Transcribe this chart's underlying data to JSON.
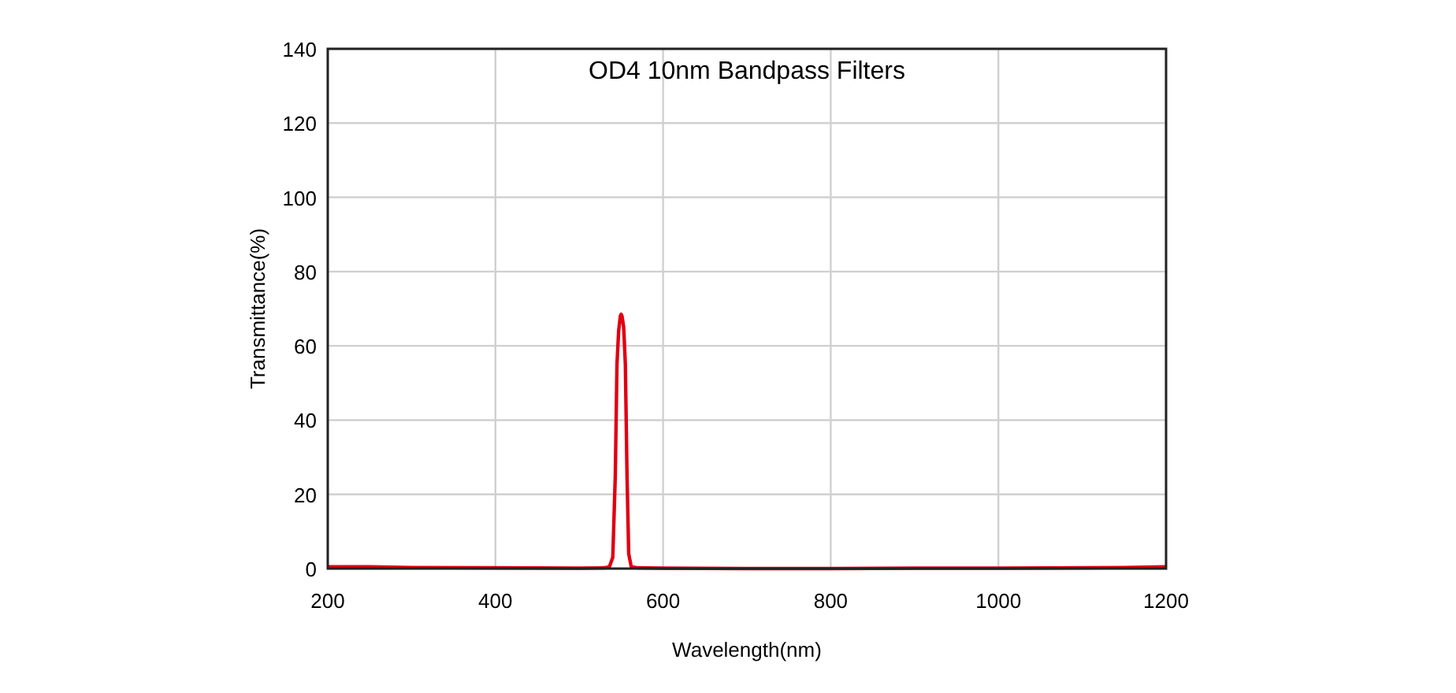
{
  "chart_data": {
    "type": "line",
    "title": "OD4 10nm Bandpass Filters",
    "xlabel": "Wavelength(nm)",
    "ylabel": "Transmittance(%)",
    "series": [
      {
        "color": "#e00012",
        "x": [
          200,
          250,
          300,
          400,
          500,
          530,
          536,
          540,
          543,
          545,
          547,
          549,
          550,
          551,
          553,
          555,
          557,
          559,
          562,
          570,
          600,
          700,
          800,
          900,
          1000,
          1100,
          1150,
          1200
        ],
        "values": [
          0.5,
          0.5,
          0.3,
          0.2,
          0.1,
          0.2,
          0.5,
          3,
          25,
          55,
          64,
          68,
          68.5,
          68,
          65,
          55,
          25,
          4,
          0.5,
          0.2,
          0.1,
          0,
          0,
          0.1,
          0.1,
          0.2,
          0.3,
          0.5
        ]
      }
    ],
    "xlim": [
      200,
      1200
    ],
    "xticks": [
      200,
      400,
      600,
      800,
      1000,
      1200
    ],
    "ylim": [
      0,
      140
    ],
    "yticks": [
      0,
      20,
      40,
      60,
      80,
      100,
      120,
      140
    ],
    "grid": true,
    "line_style": "solid",
    "marker": "none"
  }
}
